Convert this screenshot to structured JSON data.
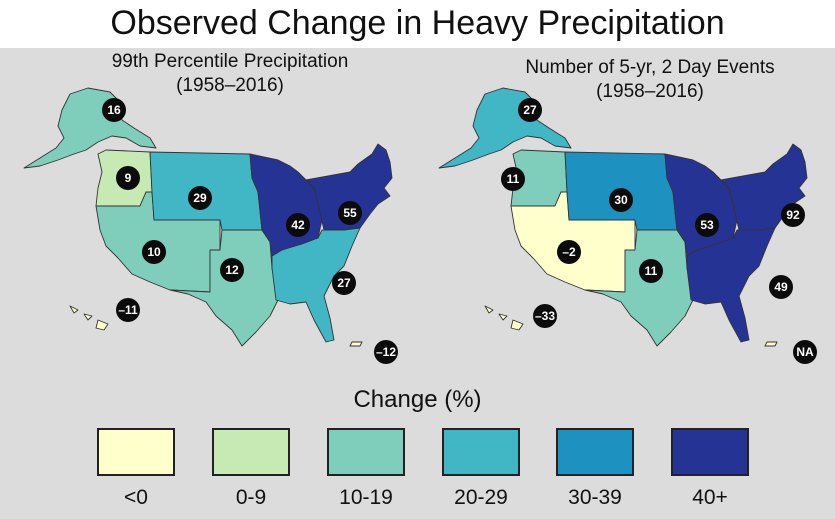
{
  "title": "Observed Change in Heavy Precipitation",
  "maps": {
    "left": {
      "title_line1": "99th Percentile Precipitation",
      "title_line2": "(1958–2016)",
      "regions": {
        "alaska": {
          "value": "16",
          "color": "#7fcdbb"
        },
        "northwest": {
          "value": "9",
          "color": "#c7e9b4"
        },
        "southwest": {
          "value": "10",
          "color": "#7fcdbb"
        },
        "great_plains_north": {
          "value": "29",
          "color": "#41b6c4"
        },
        "great_plains_south": {
          "value": "12",
          "color": "#7fcdbb"
        },
        "midwest": {
          "value": "42",
          "color": "#253494"
        },
        "northeast": {
          "value": "55",
          "color": "#253494"
        },
        "southeast": {
          "value": "27",
          "color": "#41b6c4"
        },
        "hawaii": {
          "value": "–11",
          "color": "#ffffcc"
        },
        "caribbean": {
          "value": "–12",
          "color": "#ffffcc"
        }
      }
    },
    "right": {
      "title_line1": "Number of  5-yr, 2 Day Events",
      "title_line2": "(1958–2016)",
      "regions": {
        "alaska": {
          "value": "27",
          "color": "#41b6c4"
        },
        "northwest": {
          "value": "11",
          "color": "#7fcdbb"
        },
        "southwest": {
          "value": "–2",
          "color": "#ffffcc"
        },
        "great_plains_north": {
          "value": "30",
          "color": "#1d91c0"
        },
        "great_plains_south": {
          "value": "11",
          "color": "#7fcdbb"
        },
        "midwest": {
          "value": "53",
          "color": "#253494"
        },
        "northeast": {
          "value": "92",
          "color": "#253494"
        },
        "southeast": {
          "value": "49",
          "color": "#253494"
        },
        "hawaii": {
          "value": "–33",
          "color": "#ffffcc"
        },
        "caribbean": {
          "value": "NA",
          "color": "#ffffcc"
        }
      }
    }
  },
  "legend": {
    "title": "Change (%)",
    "items": [
      {
        "label": "<0",
        "color": "#ffffcc"
      },
      {
        "label": "0-9",
        "color": "#c7e9b4"
      },
      {
        "label": "10-19",
        "color": "#7fcdbb"
      },
      {
        "label": "20-29",
        "color": "#41b6c4"
      },
      {
        "label": "30-39",
        "color": "#1d91c0"
      },
      {
        "label": "40+",
        "color": "#253494"
      }
    ]
  }
}
